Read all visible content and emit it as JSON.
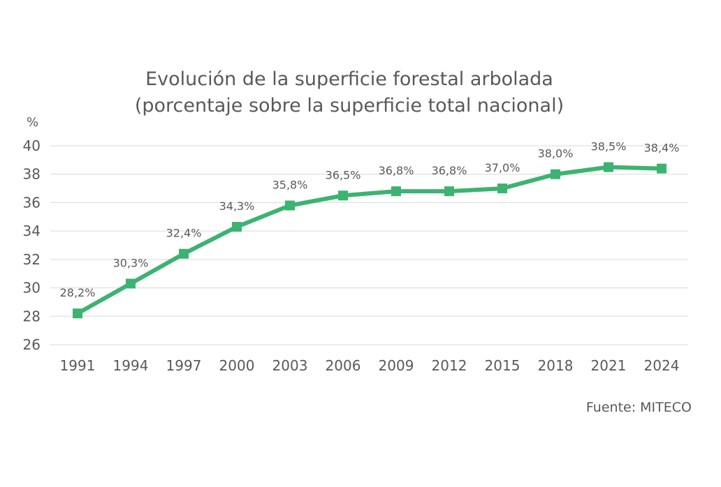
{
  "chart_data": {
    "type": "line",
    "title": "Evolución de la superficie forestal arbolada",
    "subtitle": "(porcentaje sobre la superficie total nacional)",
    "ylabel": "%",
    "xlabel": "",
    "source": "Fuente: MITECO",
    "ylim": [
      26,
      40
    ],
    "yticks": [
      26,
      28,
      30,
      32,
      34,
      36,
      38,
      40
    ],
    "grid": true,
    "legend": "none",
    "categories": [
      "1991",
      "1994",
      "1997",
      "2000",
      "2003",
      "2006",
      "2009",
      "2012",
      "2015",
      "2018",
      "2021",
      "2024"
    ],
    "series": [
      {
        "name": "Superficie forestal arbolada",
        "color": "#3cb371",
        "values": [
          28.2,
          30.3,
          32.4,
          34.3,
          35.8,
          36.5,
          36.8,
          36.8,
          37.0,
          38.0,
          38.5,
          38.4
        ],
        "labels": [
          "28,2%",
          "30,3%",
          "32,4%",
          "34,3%",
          "35,8%",
          "36,5%",
          "36,8%",
          "36,8%",
          "37,0%",
          "38,0%",
          "38,5%",
          "38,4%"
        ]
      }
    ]
  }
}
